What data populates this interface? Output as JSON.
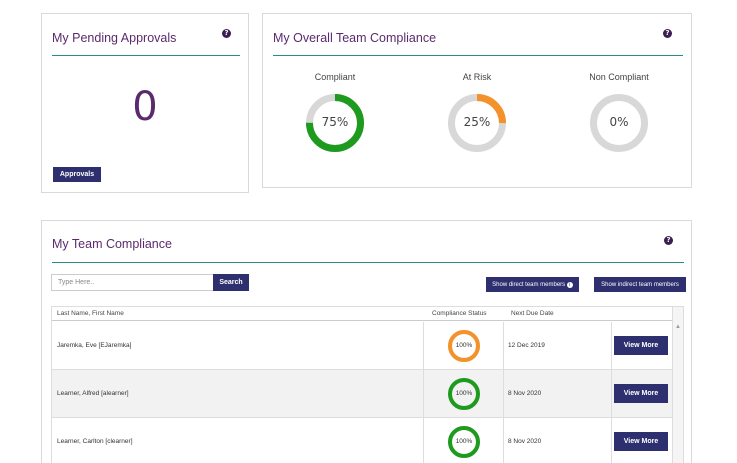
{
  "pending": {
    "title": "My Pending Approvals",
    "count": "0",
    "button": "Approvals"
  },
  "overall": {
    "title": "My Overall Team Compliance",
    "rings": [
      {
        "label": "Compliant",
        "value": "75%",
        "fraction": 0.75,
        "color": "#1e9a1e"
      },
      {
        "label": "At Risk",
        "value": "25%",
        "fraction": 0.25,
        "color": "#f5912a"
      },
      {
        "label": "Non Compliant",
        "value": "0%",
        "fraction": 0,
        "color": "#d8d8d8"
      }
    ]
  },
  "team": {
    "title": "My Team Compliance",
    "search": {
      "placeholder": "Type Here..",
      "button": "Search"
    },
    "show_direct": "Show direct team members",
    "show_indirect": "Show indirect team members",
    "columns": [
      "Last Name, First Name",
      "Compliance Status",
      "Next Due Date"
    ],
    "rows": [
      {
        "name": "Jaremka, Eve [EJaremka]",
        "status": "100%",
        "status_color": "#f5912a",
        "due": "12 Dec 2019",
        "action": "View More"
      },
      {
        "name": "Learner, Alfred [alearner]",
        "status": "100%",
        "status_color": "#1e9a1e",
        "due": "8 Nov 2020",
        "action": "View More"
      },
      {
        "name": "Learner, Carlton [clearner]",
        "status": "100%",
        "status_color": "#1e9a1e",
        "due": "8 Nov 2020",
        "action": "View More"
      }
    ]
  },
  "icons": {
    "help": "help-icon",
    "info": "info-icon",
    "scroll": "scroll-up-arrow-icon"
  }
}
